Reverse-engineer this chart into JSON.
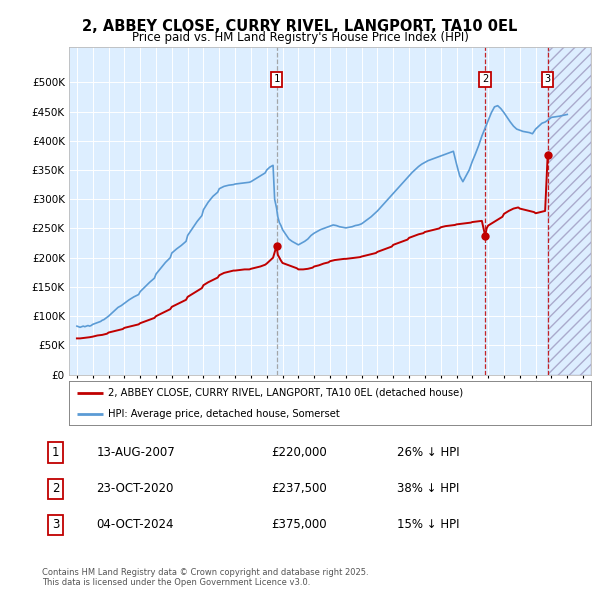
{
  "title": "2, ABBEY CLOSE, CURRY RIVEL, LANGPORT, TA10 0EL",
  "subtitle": "Price paid vs. HM Land Registry's House Price Index (HPI)",
  "hpi_color": "#5b9bd5",
  "price_color": "#c00000",
  "background_color": "#ddeeff",
  "ylim": [
    0,
    560000
  ],
  "yticks": [
    0,
    50000,
    100000,
    150000,
    200000,
    250000,
    300000,
    350000,
    400000,
    450000,
    500000
  ],
  "xlim_start": 1994.5,
  "xlim_end": 2027.5,
  "transactions": [
    {
      "date": 2007.62,
      "price": 220000,
      "label": "1"
    },
    {
      "date": 2020.81,
      "price": 237500,
      "label": "2"
    },
    {
      "date": 2024.76,
      "price": 375000,
      "label": "3"
    }
  ],
  "vlines": [
    {
      "x": 2007.62,
      "color": "#999999",
      "style": "--"
    },
    {
      "x": 2020.81,
      "color": "#c00000",
      "style": "--"
    },
    {
      "x": 2024.76,
      "color": "#c00000",
      "style": "--"
    }
  ],
  "table_rows": [
    {
      "num": "1",
      "date": "13-AUG-2007",
      "price": "£220,000",
      "pct": "26% ↓ HPI"
    },
    {
      "num": "2",
      "date": "23-OCT-2020",
      "price": "£237,500",
      "pct": "38% ↓ HPI"
    },
    {
      "num": "3",
      "date": "04-OCT-2024",
      "price": "£375,000",
      "pct": "15% ↓ HPI"
    }
  ],
  "legend_entry_price": "2, ABBEY CLOSE, CURRY RIVEL, LANGPORT, TA10 0EL (detached house)",
  "legend_entry_hpi": "HPI: Average price, detached house, Somerset",
  "footnote": "Contains HM Land Registry data © Crown copyright and database right 2025.\nThis data is licensed under the Open Government Licence v3.0.",
  "hpi_x": [
    1995.0,
    1995.1,
    1995.2,
    1995.3,
    1995.4,
    1995.5,
    1995.6,
    1995.7,
    1995.8,
    1995.9,
    1996.0,
    1996.1,
    1996.2,
    1996.3,
    1996.4,
    1996.5,
    1996.6,
    1996.7,
    1996.8,
    1996.9,
    1997.0,
    1997.2,
    1997.4,
    1997.6,
    1997.8,
    1998.0,
    1998.3,
    1998.6,
    1998.9,
    1999.0,
    1999.3,
    1999.6,
    1999.9,
    2000.0,
    2000.3,
    2000.6,
    2000.9,
    2001.0,
    2001.3,
    2001.6,
    2001.9,
    2002.0,
    2002.3,
    2002.6,
    2002.9,
    2003.0,
    2003.3,
    2003.6,
    2003.9,
    2004.0,
    2004.3,
    2004.6,
    2004.9,
    2005.0,
    2005.3,
    2005.6,
    2005.9,
    2006.0,
    2006.3,
    2006.6,
    2006.9,
    2007.0,
    2007.2,
    2007.4,
    2007.5,
    2007.62,
    2007.7,
    2007.8,
    2007.9,
    2008.0,
    2008.2,
    2008.4,
    2008.6,
    2008.8,
    2009.0,
    2009.2,
    2009.4,
    2009.6,
    2009.8,
    2010.0,
    2010.2,
    2010.4,
    2010.6,
    2010.8,
    2011.0,
    2011.2,
    2011.4,
    2011.6,
    2011.8,
    2012.0,
    2012.2,
    2012.4,
    2012.6,
    2012.8,
    2013.0,
    2013.2,
    2013.4,
    2013.6,
    2013.8,
    2014.0,
    2014.2,
    2014.4,
    2014.6,
    2014.8,
    2015.0,
    2015.2,
    2015.4,
    2015.6,
    2015.8,
    2016.0,
    2016.2,
    2016.4,
    2016.6,
    2016.8,
    2017.0,
    2017.2,
    2017.4,
    2017.6,
    2017.8,
    2018.0,
    2018.2,
    2018.4,
    2018.6,
    2018.8,
    2019.0,
    2019.2,
    2019.4,
    2019.6,
    2019.8,
    2020.0,
    2020.2,
    2020.4,
    2020.6,
    2020.81,
    2021.0,
    2021.2,
    2021.4,
    2021.6,
    2021.8,
    2022.0,
    2022.2,
    2022.4,
    2022.6,
    2022.8,
    2023.0,
    2023.2,
    2023.4,
    2023.6,
    2023.8,
    2024.0,
    2024.2,
    2024.4,
    2024.6,
    2024.76,
    2025.0,
    2025.5,
    2026.0
  ],
  "hpi_y": [
    83000,
    82000,
    81000,
    82000,
    83000,
    82000,
    83000,
    84000,
    83000,
    84000,
    86000,
    87000,
    88000,
    89000,
    90000,
    91000,
    93000,
    94000,
    96000,
    98000,
    100000,
    105000,
    110000,
    115000,
    118000,
    122000,
    128000,
    133000,
    137000,
    142000,
    150000,
    158000,
    165000,
    172000,
    182000,
    192000,
    200000,
    208000,
    215000,
    221000,
    228000,
    238000,
    250000,
    262000,
    272000,
    282000,
    295000,
    305000,
    312000,
    318000,
    322000,
    324000,
    325000,
    326000,
    327000,
    328000,
    329000,
    330000,
    335000,
    340000,
    345000,
    350000,
    355000,
    358000,
    300000,
    285000,
    270000,
    260000,
    255000,
    248000,
    240000,
    232000,
    228000,
    225000,
    222000,
    225000,
    228000,
    232000,
    238000,
    242000,
    245000,
    248000,
    250000,
    252000,
    254000,
    256000,
    255000,
    253000,
    252000,
    251000,
    252000,
    253000,
    255000,
    256000,
    258000,
    262000,
    266000,
    270000,
    275000,
    280000,
    286000,
    292000,
    298000,
    304000,
    310000,
    316000,
    322000,
    328000,
    334000,
    340000,
    346000,
    351000,
    356000,
    360000,
    363000,
    366000,
    368000,
    370000,
    372000,
    374000,
    376000,
    378000,
    380000,
    382000,
    360000,
    340000,
    330000,
    340000,
    350000,
    365000,
    378000,
    392000,
    408000,
    422000,
    435000,
    448000,
    458000,
    460000,
    455000,
    448000,
    440000,
    432000,
    425000,
    420000,
    418000,
    416000,
    415000,
    414000,
    412000,
    420000,
    425000,
    430000,
    432000,
    435000,
    440000,
    442000,
    445000
  ],
  "price_x": [
    1995.0,
    1995.2,
    1995.5,
    1995.8,
    1996.0,
    1996.3,
    1996.6,
    1996.9,
    1997.0,
    1997.3,
    1997.6,
    1997.9,
    1998.0,
    1998.3,
    1998.6,
    1998.9,
    1999.0,
    1999.3,
    1999.6,
    1999.9,
    2000.0,
    2000.3,
    2000.6,
    2000.9,
    2001.0,
    2001.3,
    2001.6,
    2001.9,
    2002.0,
    2002.3,
    2002.6,
    2002.9,
    2003.0,
    2003.3,
    2003.6,
    2003.9,
    2004.0,
    2004.3,
    2004.6,
    2004.9,
    2005.0,
    2005.3,
    2005.6,
    2005.9,
    2006.0,
    2006.3,
    2006.6,
    2006.9,
    2007.0,
    2007.2,
    2007.4,
    2007.62,
    2007.7,
    2007.9,
    2008.0,
    2008.3,
    2008.6,
    2008.9,
    2009.0,
    2009.3,
    2009.6,
    2009.9,
    2010.0,
    2010.3,
    2010.6,
    2010.9,
    2011.0,
    2011.3,
    2011.6,
    2011.9,
    2012.0,
    2012.3,
    2012.6,
    2012.9,
    2013.0,
    2013.3,
    2013.6,
    2013.9,
    2014.0,
    2014.3,
    2014.6,
    2014.9,
    2015.0,
    2015.3,
    2015.6,
    2015.9,
    2016.0,
    2016.3,
    2016.6,
    2016.9,
    2017.0,
    2017.3,
    2017.6,
    2017.9,
    2018.0,
    2018.3,
    2018.6,
    2018.9,
    2019.0,
    2019.3,
    2019.6,
    2019.9,
    2020.0,
    2020.3,
    2020.6,
    2020.81,
    2020.9,
    2021.0,
    2021.3,
    2021.6,
    2021.9,
    2022.0,
    2022.3,
    2022.6,
    2022.9,
    2023.0,
    2023.3,
    2023.6,
    2023.9,
    2024.0,
    2024.3,
    2024.6,
    2024.76
  ],
  "price_y": [
    62000,
    62000,
    63000,
    64000,
    65000,
    67000,
    68000,
    70000,
    72000,
    74000,
    76000,
    78000,
    80000,
    82000,
    84000,
    86000,
    88000,
    91000,
    94000,
    97000,
    100000,
    104000,
    108000,
    112000,
    116000,
    120000,
    124000,
    128000,
    133000,
    138000,
    143000,
    148000,
    153000,
    158000,
    162000,
    166000,
    170000,
    174000,
    176000,
    178000,
    178000,
    179000,
    180000,
    180000,
    181000,
    183000,
    185000,
    188000,
    190000,
    195000,
    200000,
    220000,
    205000,
    195000,
    191000,
    188000,
    185000,
    182000,
    180000,
    180000,
    181000,
    183000,
    185000,
    187000,
    190000,
    192000,
    194000,
    196000,
    197000,
    198000,
    198000,
    199000,
    200000,
    201000,
    202000,
    204000,
    206000,
    208000,
    210000,
    213000,
    216000,
    219000,
    222000,
    225000,
    228000,
    231000,
    234000,
    237000,
    240000,
    242000,
    244000,
    246000,
    248000,
    250000,
    252000,
    254000,
    255000,
    256000,
    257000,
    258000,
    259000,
    260000,
    261000,
    262000,
    263000,
    237500,
    250000,
    255000,
    260000,
    265000,
    270000,
    275000,
    280000,
    284000,
    286000,
    284000,
    282000,
    280000,
    278000,
    276000,
    278000,
    280000,
    375000
  ]
}
